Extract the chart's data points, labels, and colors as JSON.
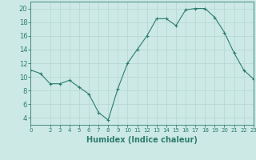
{
  "x": [
    0,
    1,
    2,
    3,
    4,
    5,
    6,
    7,
    8,
    9,
    10,
    11,
    12,
    13,
    14,
    15,
    16,
    17,
    18,
    19,
    20,
    21,
    22,
    23
  ],
  "y": [
    11,
    10.5,
    9,
    9,
    9.5,
    8.5,
    7.5,
    4.8,
    3.7,
    8.3,
    12,
    14,
    16,
    18.5,
    18.5,
    17.5,
    19.8,
    20,
    20,
    18.7,
    16.5,
    13.5,
    11,
    9.7
  ],
  "line_color": "#2d7d6e",
  "marker": "+",
  "bg_color": "#cce9e5",
  "grid_color": "#b8d8d4",
  "xlabel": "Humidex (Indice chaleur)",
  "xlim": [
    0,
    23
  ],
  "ylim": [
    3,
    21
  ],
  "yticks": [
    4,
    6,
    8,
    10,
    12,
    14,
    16,
    18,
    20
  ],
  "xticks": [
    0,
    2,
    3,
    4,
    5,
    6,
    7,
    8,
    9,
    10,
    11,
    12,
    13,
    14,
    15,
    16,
    17,
    18,
    19,
    20,
    21,
    22,
    23
  ],
  "tick_color": "#2d7d6e",
  "label_color": "#2d7d6e",
  "spine_color": "#2d7d6e",
  "xlabel_fontsize": 7,
  "ytick_fontsize": 6,
  "xtick_fontsize": 5
}
